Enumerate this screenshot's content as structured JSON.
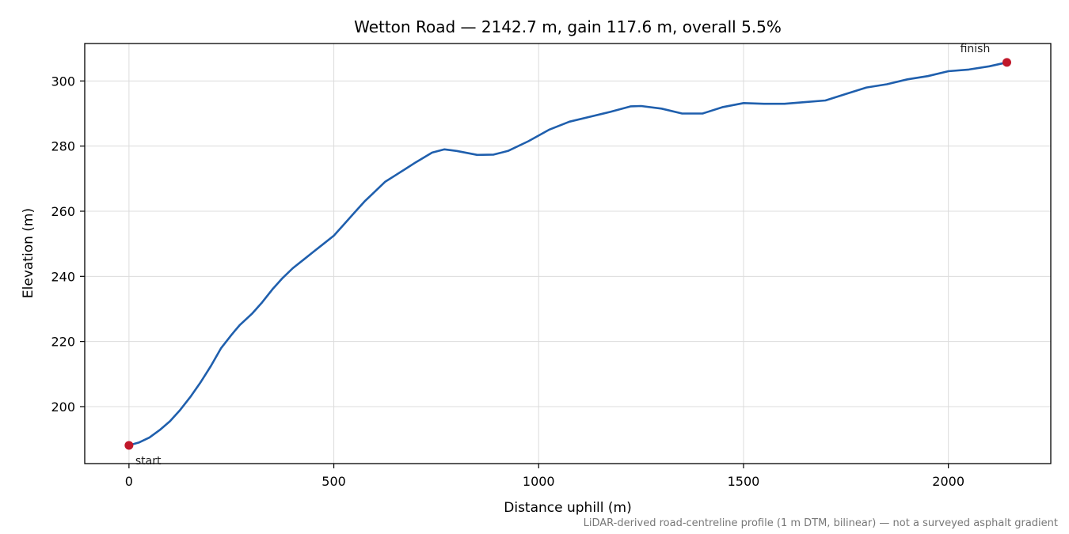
{
  "chart_data": {
    "type": "line",
    "title": "Wetton Road — 2142.7 m, gain 117.6 m, overall 5.5%",
    "xlabel": "Distance uphill (m)",
    "ylabel": "Elevation (m)",
    "note": "LiDAR-derived road-centreline profile (1 m DTM, bilinear) — not a surveyed asphalt gradient",
    "xlim": [
      -108,
      2250
    ],
    "ylim": [
      182.5,
      311.5
    ],
    "xticks": [
      0,
      500,
      1000,
      1500,
      2000
    ],
    "yticks": [
      200,
      220,
      240,
      260,
      280,
      300
    ],
    "grid": true,
    "line_color": "#1f5fad",
    "marker_color": "#c0182a",
    "series": [
      {
        "x": [
          0,
          25,
          50,
          75,
          100,
          125,
          150,
          175,
          200,
          225,
          250,
          260,
          270,
          300,
          325,
          350,
          375,
          400,
          425,
          450,
          475,
          500,
          525,
          550,
          575,
          600,
          625,
          650,
          675,
          700,
          740,
          770,
          800,
          850,
          890,
          925,
          975,
          1025,
          1075,
          1125,
          1175,
          1225,
          1250,
          1300,
          1350,
          1400,
          1450,
          1500,
          1550,
          1600,
          1650,
          1700,
          1750,
          1800,
          1850,
          1900,
          1950,
          2000,
          2050,
          2100,
          2142.7
        ],
        "y": [
          188.1,
          189.0,
          190.5,
          192.8,
          195.5,
          199.0,
          203.0,
          207.5,
          212.5,
          218.0,
          222.0,
          223.5,
          225.0,
          228.5,
          232.0,
          236.0,
          239.5,
          242.5,
          245.0,
          247.5,
          250.0,
          252.5,
          256.0,
          259.5,
          263.0,
          266.0,
          269.0,
          271.0,
          273.0,
          275.0,
          278.0,
          279.0,
          278.5,
          277.3,
          277.4,
          278.5,
          281.5,
          285.0,
          287.5,
          289.0,
          290.5,
          292.2,
          292.3,
          291.5,
          290.0,
          290.0,
          292.0,
          293.2,
          293.0,
          293.0,
          293.5,
          294.0,
          296.0,
          298.0,
          299.0,
          300.5,
          301.5,
          303.0,
          303.5,
          304.5,
          305.7
        ]
      }
    ],
    "markers": [
      {
        "label": "start",
        "x": 0,
        "y": 188.1
      },
      {
        "label": "finish",
        "x": 2142.7,
        "y": 305.7
      }
    ]
  }
}
